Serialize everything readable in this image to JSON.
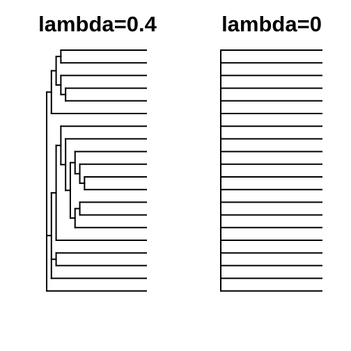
{
  "figure": {
    "line_color": "#000000",
    "background": "#ffffff"
  },
  "panels": [
    {
      "id": "left",
      "title": "lambda=0.4",
      "tip_count": 20,
      "tree": {
        "children": [
          {
            "children": [
              {
                "children": [
                  {
                    "children": [
                      {
                        "tip": 1
                      },
                      {
                        "tip": 2
                      }
                    ]
                  },
                  {
                    "children": [
                      {
                        "tip": 3
                      },
                      {
                        "children": [
                          {
                            "tip": 4
                          },
                          {
                            "tip": 5
                          }
                        ]
                      }
                    ]
                  }
                ]
              },
              {
                "tip": 6
              }
            ]
          },
          {
            "children": [
              {
                "children": [
                  {
                    "children": [
                      {
                        "tip": 7
                      },
                      {
                        "children": [
                          {
                            "tip": 8
                          },
                          {
                            "children": [
                              {
                                "children": [
                                  {
                                    "tip": 9
                                  },
                                  {
                                    "children": [
                                      {
                                        "tip": 10
                                      },
                                      {
                                        "children": [
                                          {
                                            "tip": 11
                                          },
                                          {
                                            "tip": 12
                                          }
                                        ]
                                      }
                                    ]
                                  }
                                ]
                              },
                              {
                                "children": [
                                  {
                                    "children": [
                                      {
                                        "tip": 13
                                      },
                                      {
                                        "tip": 14
                                      }
                                    ]
                                  },
                                  {
                                    "tip": 15
                                  }
                                ]
                              }
                            ]
                          }
                        ]
                      }
                    ]
                  },
                  {
                    "tip": 16
                  }
                ]
              },
              {
                "children": [
                  {
                    "tip": 17
                  },
                  {
                    "tip": 18
                  }
                ]
              },
              {
                "tip": 19
              }
            ]
          },
          {
            "tip": 20
          }
        ]
      }
    },
    {
      "id": "right",
      "title": "lambda=0",
      "tip_count": 20,
      "tree": {
        "children": [
          {
            "tip": 1
          },
          {
            "tip": 2
          },
          {
            "tip": 3
          },
          {
            "tip": 4
          },
          {
            "tip": 5
          },
          {
            "tip": 6
          },
          {
            "tip": 7
          },
          {
            "tip": 8
          },
          {
            "tip": 9
          },
          {
            "tip": 10
          },
          {
            "tip": 11
          },
          {
            "tip": 12
          },
          {
            "tip": 13
          },
          {
            "tip": 14
          },
          {
            "tip": 15
          },
          {
            "tip": 16
          },
          {
            "tip": 17
          },
          {
            "tip": 18
          },
          {
            "tip": 19
          },
          {
            "tip": 20
          }
        ]
      }
    }
  ]
}
